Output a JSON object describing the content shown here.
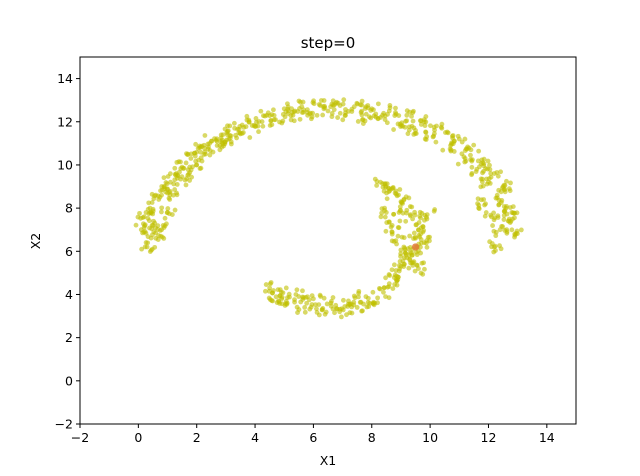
{
  "chart_data": {
    "type": "scatter",
    "title": "step=0",
    "xlabel": "X1",
    "ylabel": "X2",
    "xlim": [
      -2,
      15
    ],
    "ylim": [
      -2,
      15
    ],
    "xticks": [
      -2,
      0,
      2,
      4,
      6,
      8,
      10,
      12,
      14
    ],
    "yticks": [
      -2,
      0,
      2,
      4,
      6,
      8,
      10,
      12,
      14
    ],
    "grid": false,
    "legend": "none",
    "series": [
      {
        "color": "#bfbf00",
        "opacity": 0.6,
        "points": [
          [
            0.1,
            7.0
          ],
          [
            0.2,
            7.6
          ],
          [
            0.3,
            6.2
          ],
          [
            0.4,
            8.0
          ],
          [
            0.5,
            7.2
          ],
          [
            0.6,
            6.6
          ],
          [
            0.7,
            8.4
          ],
          [
            0.8,
            7.0
          ],
          [
            0.9,
            8.9
          ],
          [
            1.0,
            7.8
          ],
          [
            1.1,
            9.2
          ],
          [
            1.2,
            8.6
          ],
          [
            1.3,
            9.6
          ],
          [
            1.5,
            9.9
          ],
          [
            1.6,
            9.3
          ],
          [
            1.8,
            10.3
          ],
          [
            2.0,
            10.0
          ],
          [
            2.1,
            10.8
          ],
          [
            2.3,
            10.5
          ],
          [
            2.5,
            11.1
          ],
          [
            2.7,
            10.9
          ],
          [
            2.9,
            11.4
          ],
          [
            3.1,
            11.2
          ],
          [
            3.3,
            11.7
          ],
          [
            3.6,
            11.5
          ],
          [
            3.8,
            12.0
          ],
          [
            4.1,
            11.8
          ],
          [
            4.4,
            12.3
          ],
          [
            4.7,
            12.1
          ],
          [
            5.0,
            12.6
          ],
          [
            5.3,
            12.3
          ],
          [
            5.6,
            12.7
          ],
          [
            5.9,
            12.4
          ],
          [
            6.2,
            12.8
          ],
          [
            6.5,
            12.5
          ],
          [
            6.8,
            12.9
          ],
          [
            7.1,
            12.3
          ],
          [
            7.4,
            12.7
          ],
          [
            7.7,
            12.1
          ],
          [
            8.0,
            12.6
          ],
          [
            8.3,
            12.2
          ],
          [
            8.6,
            12.5
          ],
          [
            8.9,
            11.9
          ],
          [
            9.2,
            12.3
          ],
          [
            9.5,
            11.6
          ],
          [
            9.8,
            12.0
          ],
          [
            10.1,
            11.3
          ],
          [
            10.4,
            11.7
          ],
          [
            10.7,
            10.9
          ],
          [
            11.0,
            11.2
          ],
          [
            11.2,
            10.3
          ],
          [
            11.4,
            10.7
          ],
          [
            11.6,
            9.8
          ],
          [
            11.8,
            10.1
          ],
          [
            12.0,
            9.2
          ],
          [
            12.2,
            9.6
          ],
          [
            12.3,
            8.6
          ],
          [
            12.5,
            9.0
          ],
          [
            12.6,
            8.0
          ],
          [
            12.7,
            7.4
          ],
          [
            12.8,
            7.8
          ],
          [
            12.9,
            6.8
          ],
          [
            12.2,
            6.2
          ],
          [
            12.4,
            7.0
          ],
          [
            12.1,
            7.6
          ],
          [
            11.9,
            8.2
          ],
          [
            4.5,
            4.3
          ],
          [
            4.6,
            3.7
          ],
          [
            4.9,
            4.1
          ],
          [
            5.1,
            3.6
          ],
          [
            5.4,
            4.0
          ],
          [
            5.7,
            3.4
          ],
          [
            6.0,
            3.8
          ],
          [
            6.3,
            3.3
          ],
          [
            6.6,
            3.6
          ],
          [
            6.9,
            3.2
          ],
          [
            7.2,
            3.7
          ],
          [
            7.5,
            3.4
          ],
          [
            7.8,
            3.9
          ],
          [
            8.1,
            3.6
          ],
          [
            8.4,
            4.1
          ],
          [
            8.6,
            4.5
          ],
          [
            8.8,
            4.9
          ],
          [
            9.0,
            5.3
          ],
          [
            9.2,
            5.7
          ],
          [
            9.4,
            6.1
          ],
          [
            9.5,
            6.6
          ],
          [
            9.6,
            7.0
          ],
          [
            9.4,
            7.5
          ],
          [
            9.2,
            7.9
          ],
          [
            9.0,
            8.3
          ],
          [
            8.8,
            8.7
          ],
          [
            8.6,
            8.9
          ],
          [
            8.3,
            9.2
          ],
          [
            8.5,
            7.8
          ],
          [
            8.7,
            7.2
          ],
          [
            8.9,
            6.7
          ],
          [
            9.1,
            6.2
          ],
          [
            9.3,
            5.6
          ],
          [
            9.6,
            5.2
          ],
          [
            9.8,
            6.4
          ],
          [
            9.9,
            7.7
          ]
        ]
      },
      {
        "color": "#e07b39",
        "opacity": 0.85,
        "points": [
          [
            9.5,
            6.2
          ]
        ]
      }
    ]
  }
}
